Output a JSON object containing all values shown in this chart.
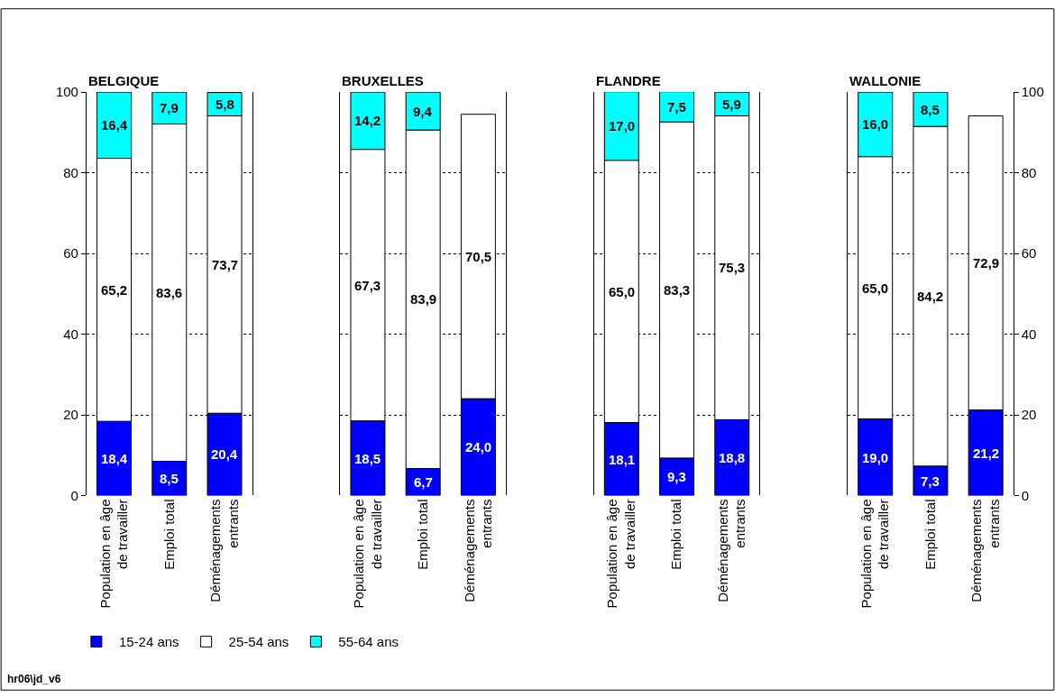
{
  "chart_data": [
    {
      "type": "bar",
      "title": "BELGIQUE",
      "stacked": true,
      "grid": "y",
      "legend": "bottom",
      "ylim": [
        0,
        100
      ],
      "yticks": [
        0,
        20,
        40,
        60,
        80,
        100
      ],
      "categories": [
        "Population en âge de travailler",
        "Emploi total",
        "Déménagements entrants"
      ],
      "series": [
        {
          "name": "15-24 ans",
          "color": "#0000ff",
          "values": [
            18.4,
            8.5,
            20.4
          ],
          "value_labels": [
            "18,4",
            "8,5",
            "20,4"
          ]
        },
        {
          "name": "25-54 ans",
          "color": "#ffffff",
          "values": [
            65.2,
            83.6,
            73.7
          ],
          "value_labels": [
            "65,2",
            "83,6",
            "73,7"
          ]
        },
        {
          "name": "55-64 ans",
          "color": "#00ffff",
          "values": [
            16.4,
            7.9,
            5.8
          ],
          "value_labels": [
            "16,4",
            "7,9",
            "5,8"
          ]
        }
      ],
      "annotations": [
        "hr06\\jd_v6"
      ]
    },
    {
      "type": "bar",
      "title": "BRUXELLES",
      "stacked": true,
      "grid": "y",
      "tick_labels": "x",
      "ylim": [
        0,
        100
      ],
      "yticks": [
        0,
        20,
        40,
        60,
        80,
        100
      ],
      "categories": [
        "Population en âge de travailler",
        "Emploi total",
        "Déménagements entrants"
      ],
      "series": [
        {
          "color": "#0000ff",
          "values": [
            18.5,
            6.7,
            24.0
          ],
          "value_labels": [
            "18,5",
            "6,7",
            "24,0"
          ]
        },
        {
          "color": "#ffffff",
          "values": [
            67.3,
            83.9,
            70.5
          ],
          "value_labels": [
            "67,3",
            "83,9",
            "70,5"
          ]
        },
        {
          "color": "#00ffff",
          "values": [
            14.2,
            9.4,
            null
          ],
          "value_labels": [
            "14,2",
            "9,4",
            null
          ]
        }
      ]
    },
    {
      "type": "bar",
      "title": "FLANDRE",
      "stacked": true,
      "grid": "y",
      "tick_labels": "x",
      "ylim": [
        0,
        100
      ],
      "yticks": [
        0,
        20,
        40,
        60,
        80,
        100
      ],
      "categories": [
        "Population en âge de travailler",
        "Emploi total",
        "Déménagements entrants"
      ],
      "series": [
        {
          "color": "#0000ff",
          "values": [
            18.1,
            9.3,
            18.8
          ],
          "value_labels": [
            "18,1",
            "9,3",
            "18,8"
          ]
        },
        {
          "color": "#ffffff",
          "values": [
            65.0,
            83.3,
            75.3
          ],
          "value_labels": [
            "65,0",
            "83,3",
            "75,3"
          ]
        },
        {
          "color": "#00ffff",
          "values": [
            17.0,
            7.5,
            5.9
          ],
          "value_labels": [
            "17,0",
            "7,5",
            "5,9"
          ]
        }
      ]
    },
    {
      "type": "bar",
      "title": "WALLONIE",
      "stacked": true,
      "grid": "y",
      "ylim": [
        0,
        100
      ],
      "yticks": [
        0,
        20,
        40,
        60,
        80,
        100
      ],
      "categories": [
        "Population en âge de travailler",
        "Emploi total",
        "Déménagements entrants"
      ],
      "series": [
        {
          "color": "#0000ff",
          "values": [
            19.0,
            7.3,
            21.2
          ],
          "value_labels": [
            "19,0",
            "7,3",
            "21,2"
          ]
        },
        {
          "color": "#ffffff",
          "values": [
            65.0,
            84.2,
            72.9
          ],
          "value_labels": [
            "65,0",
            "84,2",
            "72,9"
          ]
        },
        {
          "color": "#00ffff",
          "values": [
            16.0,
            8.5,
            null
          ],
          "value_labels": [
            "16,0",
            "8,5",
            null
          ]
        }
      ]
    }
  ]
}
